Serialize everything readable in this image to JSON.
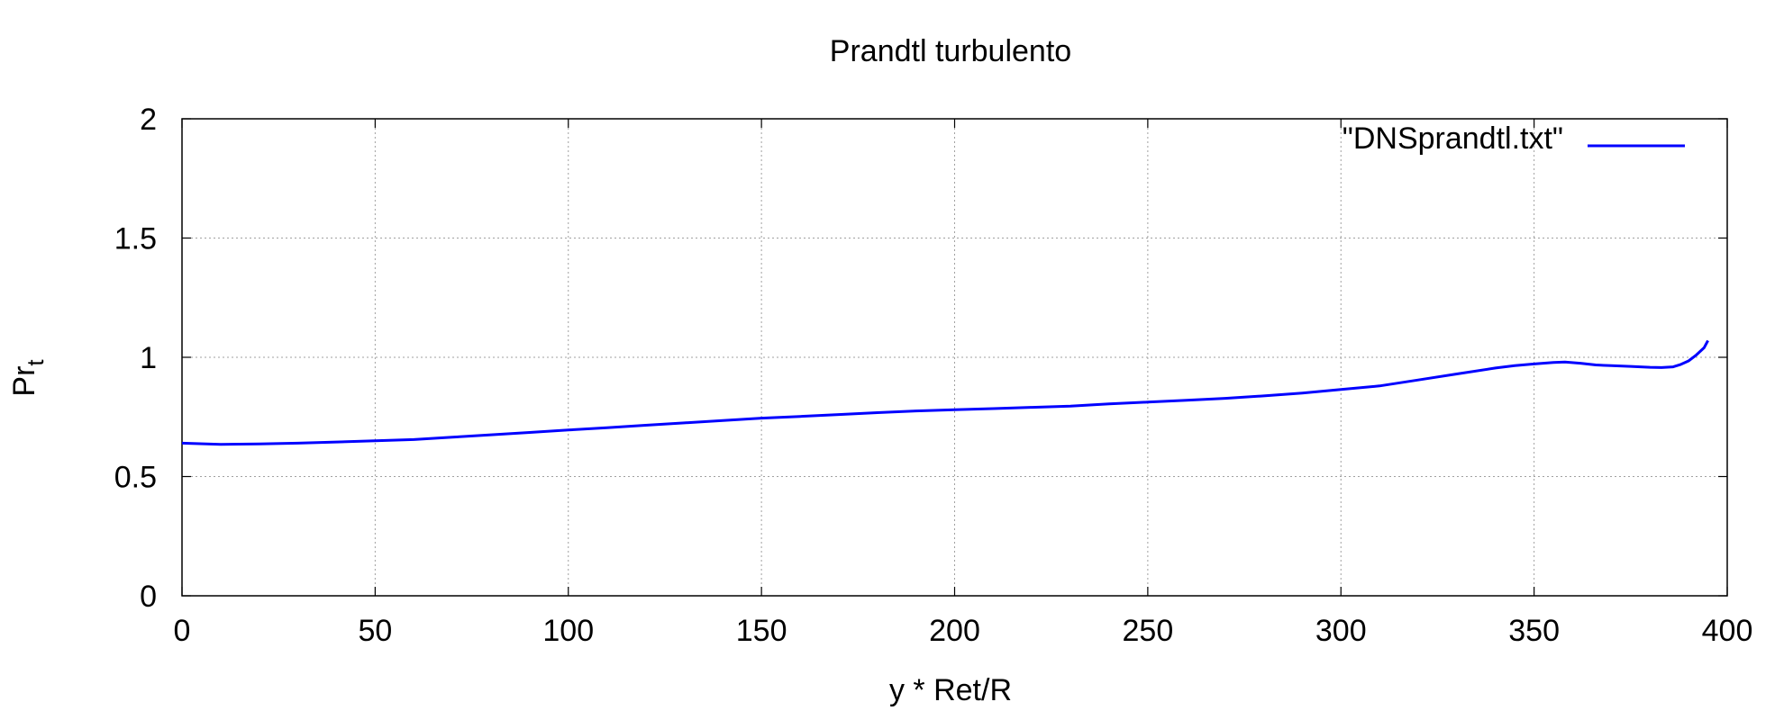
{
  "chart_data": {
    "type": "line",
    "title": "Prandtl turbulento",
    "xlabel": "y * Ret/R",
    "ylabel": "Pr",
    "ylabel_subscript": "t",
    "xlim": [
      0,
      400
    ],
    "ylim": [
      0,
      2
    ],
    "xticks": [
      0,
      50,
      100,
      150,
      200,
      250,
      300,
      350,
      400
    ],
    "yticks": [
      0,
      0.5,
      1,
      1.5,
      2
    ],
    "ytick_labels": [
      "0",
      "0.5",
      "1",
      "1.5",
      "2"
    ],
    "grid": true,
    "legend_position": "top-right",
    "series": [
      {
        "name": "\"DNSprandtl.txt\"",
        "color": "#0000ff",
        "x": [
          0,
          10,
          20,
          30,
          40,
          50,
          60,
          70,
          80,
          90,
          100,
          110,
          120,
          130,
          140,
          150,
          160,
          170,
          180,
          190,
          200,
          210,
          220,
          230,
          240,
          250,
          260,
          270,
          280,
          290,
          300,
          310,
          320,
          330,
          340,
          345,
          350,
          355,
          358,
          362,
          366,
          370,
          375,
          380,
          383,
          386,
          388,
          390,
          392,
          394,
          395
        ],
        "y": [
          0.64,
          0.635,
          0.637,
          0.64,
          0.645,
          0.65,
          0.655,
          0.665,
          0.675,
          0.685,
          0.695,
          0.705,
          0.715,
          0.725,
          0.735,
          0.745,
          0.752,
          0.76,
          0.768,
          0.775,
          0.78,
          0.785,
          0.79,
          0.795,
          0.805,
          0.812,
          0.82,
          0.828,
          0.838,
          0.85,
          0.865,
          0.88,
          0.905,
          0.93,
          0.955,
          0.965,
          0.972,
          0.978,
          0.98,
          0.975,
          0.968,
          0.965,
          0.962,
          0.958,
          0.957,
          0.96,
          0.97,
          0.985,
          1.01,
          1.04,
          1.07
        ]
      }
    ]
  }
}
